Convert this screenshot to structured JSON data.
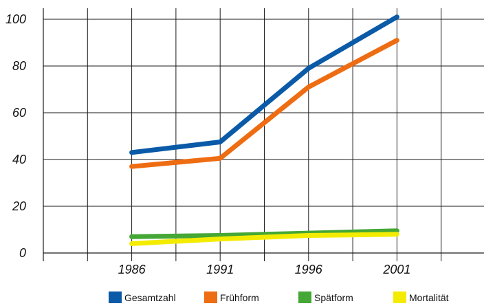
{
  "chart_data": {
    "type": "line",
    "categories": [
      "1986",
      "1991",
      "1996",
      "2001"
    ],
    "x": [
      1986,
      1991,
      1996,
      2001
    ],
    "xlim": [
      1981,
      2006
    ],
    "ylim": [
      0,
      100
    ],
    "yticks": [
      0,
      20,
      40,
      60,
      80,
      100
    ],
    "grid": true,
    "legend_position": "bottom",
    "series": [
      {
        "name": "Gesamtzahl",
        "color": "#0a5aa8",
        "values": [
          43,
          47.5,
          79,
          101
        ]
      },
      {
        "name": "Frühform",
        "color": "#ee6c12",
        "values": [
          37,
          40.5,
          71,
          91
        ]
      },
      {
        "name": "Spätform",
        "color": "#45a735",
        "values": [
          7,
          7.5,
          8.5,
          9.5
        ]
      },
      {
        "name": "Mortalität",
        "color": "#f4ec00",
        "values": [
          4,
          6,
          7.5,
          8
        ]
      }
    ]
  }
}
